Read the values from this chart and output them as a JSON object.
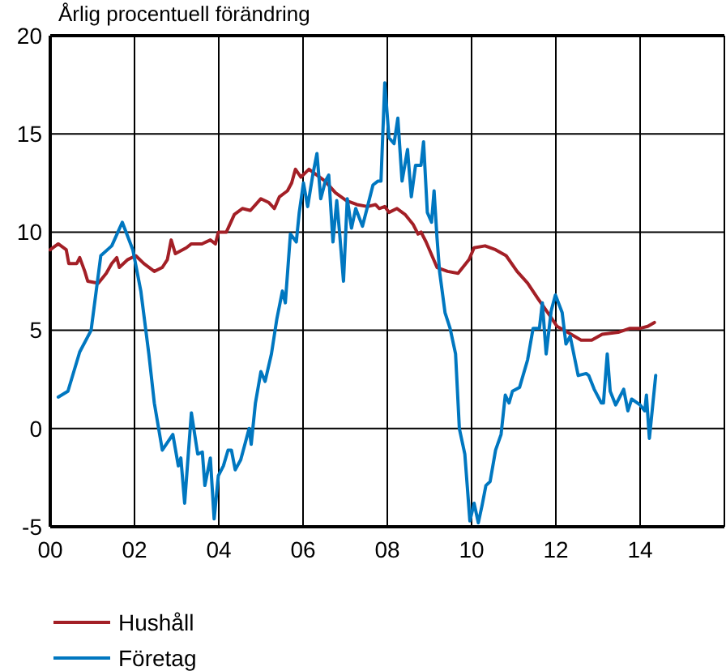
{
  "chart_data": {
    "type": "line",
    "title": "Årlig procentuell förändring",
    "xlim": [
      2000,
      2016
    ],
    "xticks": [
      {
        "value": 2000,
        "label": "00"
      },
      {
        "value": 2002,
        "label": "02"
      },
      {
        "value": 2004,
        "label": "04"
      },
      {
        "value": 2006,
        "label": "06"
      },
      {
        "value": 2008,
        "label": "08"
      },
      {
        "value": 2010,
        "label": "10"
      },
      {
        "value": 2012,
        "label": "12"
      },
      {
        "value": 2014,
        "label": "14"
      },
      {
        "value": 2016,
        "label": null
      }
    ],
    "ylim": [
      -5,
      20
    ],
    "yticks": [
      -5,
      0,
      5,
      10,
      15,
      20
    ],
    "grid": true,
    "legend": "bottom",
    "line_style": "solid",
    "series": [
      {
        "name": "Hushåll",
        "color": "#a31f26",
        "x": [
          2000.0,
          2000.19,
          2000.38,
          2000.44,
          2000.63,
          2000.7,
          2000.82,
          2000.89,
          2001.14,
          2001.33,
          2001.46,
          2001.58,
          2001.64,
          2001.84,
          2002.03,
          2002.22,
          2002.47,
          2002.66,
          2002.78,
          2002.87,
          2002.97,
          2003.23,
          2003.35,
          2003.6,
          2003.8,
          2003.92,
          2003.99,
          2004.18,
          2004.37,
          2004.56,
          2004.75,
          2005.0,
          2005.19,
          2005.32,
          2005.44,
          2005.63,
          2005.73,
          2005.82,
          2005.95,
          2006.14,
          2006.33,
          2006.52,
          2006.77,
          2007.03,
          2007.28,
          2007.53,
          2007.72,
          2007.81,
          2007.94,
          2008.04,
          2008.23,
          2008.42,
          2008.61,
          2008.73,
          2008.8,
          2008.92,
          2009.18,
          2009.43,
          2009.68,
          2009.94,
          2010.06,
          2010.32,
          2010.57,
          2010.82,
          2011.08,
          2011.33,
          2011.58,
          2011.84,
          2012.03,
          2012.28,
          2012.6,
          2012.85,
          2013.1,
          2013.48,
          2013.76,
          2014.0,
          2014.18,
          2014.34
        ],
        "values": [
          9.1,
          9.4,
          9.1,
          8.4,
          8.4,
          8.7,
          8.0,
          7.5,
          7.4,
          7.9,
          8.4,
          8.7,
          8.2,
          8.6,
          8.8,
          8.4,
          8.0,
          8.2,
          8.6,
          9.6,
          8.9,
          9.2,
          9.4,
          9.4,
          9.6,
          9.4,
          10.0,
          10.0,
          10.9,
          11.2,
          11.1,
          11.7,
          11.5,
          11.2,
          11.8,
          12.1,
          12.5,
          13.2,
          12.8,
          13.2,
          12.9,
          12.6,
          12.0,
          11.6,
          11.4,
          11.3,
          11.4,
          11.2,
          11.3,
          11.0,
          11.2,
          10.9,
          10.4,
          9.9,
          10.0,
          9.5,
          8.2,
          8.0,
          7.9,
          8.6,
          9.2,
          9.3,
          9.1,
          8.8,
          8.0,
          7.4,
          6.6,
          5.8,
          5.2,
          4.9,
          4.5,
          4.5,
          4.8,
          4.9,
          5.1,
          5.1,
          5.2,
          5.4
        ]
      },
      {
        "name": "Företag",
        "color": "#0077c0",
        "x": [
          2000.19,
          2000.42,
          2000.7,
          2000.97,
          2001.2,
          2001.46,
          2001.71,
          2001.96,
          2002.15,
          2002.34,
          2002.47,
          2002.66,
          2002.91,
          2003.04,
          2003.1,
          2003.19,
          2003.35,
          2003.5,
          2003.61,
          2003.67,
          2003.8,
          2003.89,
          2003.99,
          2004.11,
          2004.22,
          2004.3,
          2004.39,
          2004.52,
          2004.62,
          2004.72,
          2004.77,
          2004.87,
          2005.0,
          2005.1,
          2005.25,
          2005.38,
          2005.51,
          2005.58,
          2005.7,
          2005.84,
          2005.91,
          2006.01,
          2006.11,
          2006.23,
          2006.33,
          2006.42,
          2006.53,
          2006.61,
          2006.71,
          2006.8,
          2006.87,
          2006.96,
          2007.05,
          2007.15,
          2007.25,
          2007.41,
          2007.53,
          2007.66,
          2007.78,
          2007.85,
          2007.94,
          2008.04,
          2008.16,
          2008.25,
          2008.35,
          2008.48,
          2008.57,
          2008.67,
          2008.8,
          2008.86,
          2008.95,
          2009.05,
          2009.11,
          2009.18,
          2009.24,
          2009.37,
          2009.49,
          2009.62,
          2009.71,
          2009.84,
          2009.96,
          2010.06,
          2010.16,
          2010.25,
          2010.34,
          2010.44,
          2010.57,
          2010.7,
          2010.8,
          2010.89,
          2010.97,
          2011.14,
          2011.33,
          2011.46,
          2011.61,
          2011.68,
          2011.77,
          2011.89,
          2011.99,
          2012.15,
          2012.24,
          2012.34,
          2012.53,
          2012.72,
          2012.78,
          2012.91,
          2013.08,
          2013.13,
          2013.22,
          2013.29,
          2013.42,
          2013.61,
          2013.71,
          2013.8,
          2014.0,
          2014.11,
          2014.15,
          2014.22,
          2014.37
        ],
        "values": [
          1.6,
          1.9,
          3.9,
          5.0,
          8.8,
          9.3,
          10.5,
          9.1,
          7.0,
          3.8,
          1.3,
          -1.1,
          -0.3,
          -1.9,
          -1.5,
          -3.8,
          0.8,
          -1.3,
          -1.2,
          -2.9,
          -1.5,
          -4.6,
          -2.4,
          -1.9,
          -1.1,
          -1.1,
          -2.1,
          -1.6,
          -0.8,
          0,
          -0.8,
          1.3,
          2.9,
          2.4,
          3.8,
          5.6,
          7.0,
          6.4,
          9.9,
          9.5,
          11.0,
          12.5,
          11.3,
          12.9,
          14.0,
          11.7,
          12.6,
          12.9,
          9.5,
          11.6,
          9.9,
          7.5,
          11.7,
          10.2,
          11.2,
          10.3,
          11.3,
          12.4,
          12.6,
          12.6,
          17.6,
          14.8,
          14.5,
          15.8,
          12.6,
          14.2,
          11.8,
          13.4,
          13.4,
          14.6,
          11.0,
          10.5,
          12.1,
          9.7,
          8.0,
          5.9,
          5.1,
          3.8,
          0,
          -1.3,
          -4.7,
          -3.8,
          -4.8,
          -3.9,
          -2.9,
          -2.7,
          -1.1,
          -0.3,
          1.7,
          1.3,
          1.9,
          2.1,
          3.5,
          5.1,
          5.1,
          6.4,
          3.8,
          6.0,
          6.8,
          5.9,
          4.3,
          4.7,
          2.7,
          2.8,
          2.7,
          2.0,
          1.3,
          1.3,
          3.8,
          1.9,
          1.2,
          2.0,
          0.9,
          1.5,
          1.2,
          0.9,
          1.7,
          -0.5,
          2.7
        ]
      }
    ]
  }
}
